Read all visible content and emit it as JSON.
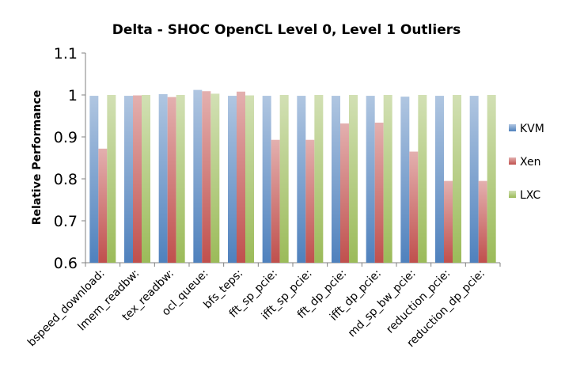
{
  "chart_data": {
    "type": "bar",
    "title": "Delta - SHOC OpenCL Level 0, Level 1 Outliers",
    "xlabel": "",
    "ylabel": "Relative Performance",
    "ylim": [
      0.6,
      1.1
    ],
    "yticks": [
      "0.6",
      "0.7",
      "0.8",
      "0.9",
      "1",
      "1.1"
    ],
    "grid": false,
    "legend_position": "right",
    "categories": [
      "bspeed_download:",
      "lmem_readbw:",
      "tex_readbw:",
      "ocl_queue:",
      "bfs_teps:",
      "fft_sp_pcie:",
      "ifft_sp_pcie:",
      "fft_dp_pcie:",
      "ifft_dp_pcie:",
      "md_sp_bw_pcie:",
      "reduction_pcie:",
      "reduction_dp_pcie:"
    ],
    "series": [
      {
        "name": "KVM",
        "color": "#4f81bd",
        "values": [
          0.998,
          0.998,
          1.002,
          1.012,
          0.998,
          0.998,
          0.998,
          0.998,
          0.998,
          0.996,
          0.998,
          0.998
        ]
      },
      {
        "name": "Xen",
        "color": "#c0504d",
        "values": [
          0.872,
          0.999,
          0.995,
          1.009,
          1.008,
          0.893,
          0.893,
          0.932,
          0.934,
          0.865,
          0.795,
          0.795
        ]
      },
      {
        "name": "LXC",
        "color": "#9bbb59",
        "values": [
          1.0,
          1.0,
          1.0,
          1.003,
          0.999,
          1.0,
          1.0,
          1.0,
          1.0,
          1.0,
          1.0,
          1.0
        ]
      }
    ]
  }
}
